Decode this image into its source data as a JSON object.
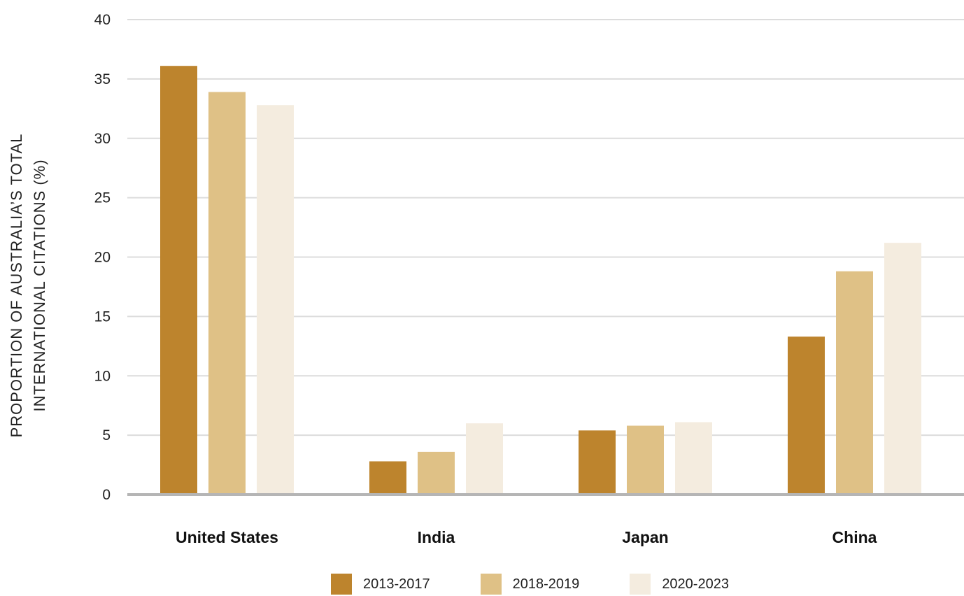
{
  "chart_data": {
    "type": "bar",
    "title": "",
    "xlabel": "",
    "ylabel_lines": [
      "PROPORTION OF AUSTRALIA’S TOTAL",
      "INTERNATIONAL CITATIONS (%)"
    ],
    "categories": [
      "United States",
      "India",
      "Japan",
      "China"
    ],
    "series": [
      {
        "name": "2013-2017",
        "color": "#bd842d",
        "values": [
          36.1,
          2.8,
          5.4,
          13.3
        ]
      },
      {
        "name": "2018-2019",
        "color": "#dfc186",
        "values": [
          33.9,
          3.6,
          5.8,
          18.8
        ]
      },
      {
        "name": "2020-2023",
        "color": "#f4ecdf",
        "values": [
          32.8,
          6.0,
          6.1,
          21.2
        ]
      }
    ],
    "ylim": [
      0,
      40
    ],
    "yticks": [
      0,
      5,
      10,
      15,
      20,
      25,
      30,
      35,
      40
    ],
    "grid": true,
    "legend_position": "bottom"
  }
}
